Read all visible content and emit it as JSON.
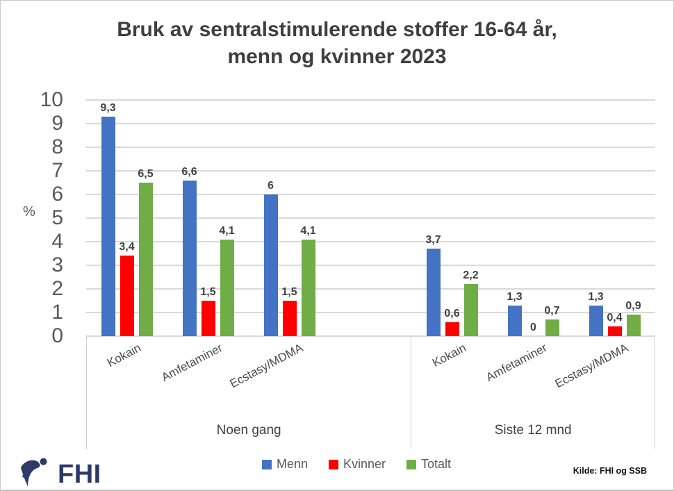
{
  "title": {
    "line1": "Bruk av sentralstimulerende stoffer 16-64 år,",
    "line2": "menn og kvinner 2023"
  },
  "chart_data": {
    "type": "bar",
    "title": "Bruk av sentralstimulerende stoffer 16-64 år, menn og kvinner 2023",
    "xlabel": "",
    "ylabel": "%",
    "ylim": [
      0,
      10
    ],
    "yticks": [
      0,
      1,
      2,
      3,
      4,
      5,
      6,
      7,
      8,
      9,
      10
    ],
    "grid": true,
    "legend_position": "bottom",
    "series_names": [
      "Menn",
      "Kvinner",
      "Totalt"
    ],
    "colors": {
      "Menn": "#4472C4",
      "Kvinner": "#FF0000",
      "Totalt": "#70AD47"
    },
    "panels": [
      {
        "label": "Noen gang",
        "categories": [
          "Kokain",
          "Amfetaminer",
          "Ecstasy/MDMA"
        ],
        "spacer_slots": 1,
        "groups": [
          {
            "category": "Kokain",
            "bars": [
              {
                "series": "Menn",
                "value": 9.3,
                "label": "9,3"
              },
              {
                "series": "Kvinner",
                "value": 3.4,
                "label": "3,4"
              },
              {
                "series": "Totalt",
                "value": 6.5,
                "label": "6,5"
              }
            ]
          },
          {
            "category": "Amfetaminer",
            "bars": [
              {
                "series": "Menn",
                "value": 6.6,
                "label": "6,6"
              },
              {
                "series": "Kvinner",
                "value": 1.5,
                "label": "1,5"
              },
              {
                "series": "Totalt",
                "value": 4.1,
                "label": "4,1"
              }
            ]
          },
          {
            "category": "Ecstasy/MDMA",
            "bars": [
              {
                "series": "Menn",
                "value": 6.0,
                "label": "6"
              },
              {
                "series": "Kvinner",
                "value": 1.5,
                "label": "1,5"
              },
              {
                "series": "Totalt",
                "value": 4.1,
                "label": "4,1"
              }
            ]
          }
        ]
      },
      {
        "label": "Siste 12 mnd",
        "categories": [
          "Kokain",
          "Amfetaminer",
          "Ecstasy/MDMA"
        ],
        "spacer_slots": 0,
        "groups": [
          {
            "category": "Kokain",
            "bars": [
              {
                "series": "Menn",
                "value": 3.7,
                "label": "3,7"
              },
              {
                "series": "Kvinner",
                "value": 0.6,
                "label": "0,6"
              },
              {
                "series": "Totalt",
                "value": 2.2,
                "label": "2,2"
              }
            ]
          },
          {
            "category": "Amfetaminer",
            "bars": [
              {
                "series": "Menn",
                "value": 1.3,
                "label": "1,3"
              },
              {
                "series": "Kvinner",
                "value": 0,
                "label": "0"
              },
              {
                "series": "Totalt",
                "value": 0.7,
                "label": "0,7"
              }
            ]
          },
          {
            "category": "Ecstasy/MDMA",
            "bars": [
              {
                "series": "Menn",
                "value": 1.3,
                "label": "1,3"
              },
              {
                "series": "Kvinner",
                "value": 0.4,
                "label": "0,4"
              },
              {
                "series": "Totalt",
                "value": 0.9,
                "label": "0,9"
              }
            ]
          }
        ]
      }
    ]
  },
  "legend": {
    "items": [
      {
        "label": "Menn",
        "color": "#4472C4"
      },
      {
        "label": "Kvinner",
        "color": "#FF0000"
      },
      {
        "label": "Totalt",
        "color": "#70AD47"
      }
    ]
  },
  "footer": {
    "logo_text": "FHI",
    "source": "Kilde: FHI og SSB"
  },
  "colors": {
    "title_text": "#3F3F3F",
    "tick_text": "#595959",
    "value_label_text": "#404040",
    "gridline": "#D9D9D9",
    "divider": "#D0D0D0",
    "logo_navy": "#2B3A67",
    "background": "#FFFFFF"
  }
}
